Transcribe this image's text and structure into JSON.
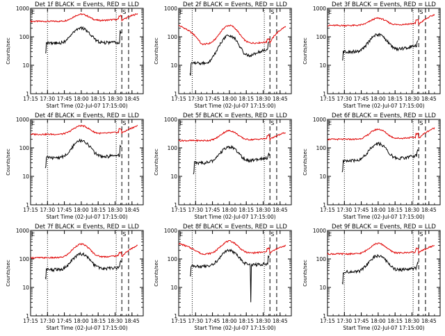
{
  "chart_data": [
    {
      "type": "line",
      "title": "Det 1f BLACK = Events, RED = LLD",
      "ylabel": "Counts/sec",
      "xlabel": "Start Time (02-Jul-07 17:15:00)",
      "ylim": [
        1,
        1000
      ],
      "yscale": "log",
      "x_ticks": [
        "17:15",
        "17:30",
        "17:45",
        "18:00",
        "18:15",
        "18:30",
        "18:45"
      ],
      "y_ticks": [
        "1",
        "10",
        "100",
        "1000"
      ],
      "markers": [
        "E",
        "S"
      ],
      "lld": {
        "base": 350,
        "peak": 620,
        "end": 650
      },
      "events": {
        "start": 55,
        "base": 60,
        "peak": 200,
        "end": 65,
        "spike": 150
      },
      "dotted": [
        "17:30",
        "18:31"
      ],
      "dashed": [
        "18:36",
        "18:42"
      ]
    },
    {
      "type": "line",
      "title": "Det 2f BLACK = Events, RED = LLD",
      "ylabel": "Counts/sec",
      "xlabel": "Start Time (02-Jul-07 17:15:00)",
      "ylim": [
        1,
        1000
      ],
      "yscale": "log",
      "x_ticks": [
        "17:15",
        "17:30",
        "17:45",
        "18:00",
        "18:15",
        "18:30",
        "18:45"
      ],
      "y_ticks": [
        "1",
        "10",
        "100",
        "1000"
      ],
      "markers": [
        "E",
        "S"
      ],
      "lld": {
        "base": 55,
        "peak": 250,
        "end": 230,
        "start": 250
      },
      "events": {
        "start": 10,
        "base": 12,
        "peak": 110,
        "end": 40,
        "spike": 60
      },
      "dotted": [
        "17:27",
        "18:31"
      ],
      "dashed": [
        "18:36",
        "18:42"
      ]
    },
    {
      "type": "line",
      "title": "Det 3f BLACK = Events, RED = LLD",
      "ylabel": "Counts/sec",
      "xlabel": "Start Time (02-Jul-07 17:15:00)",
      "ylim": [
        1,
        1000
      ],
      "yscale": "log",
      "x_ticks": [
        "17:15",
        "17:30",
        "17:45",
        "18:00",
        "18:15",
        "18:30",
        "18:45"
      ],
      "y_ticks": [
        "1",
        "10",
        "100",
        "1000"
      ],
      "markers": [
        "E",
        "S"
      ],
      "lld": {
        "base": 250,
        "peak": 450,
        "end": 600
      },
      "events": {
        "start": 28,
        "base": 30,
        "peak": 120,
        "end": 50,
        "spike": 70
      },
      "dotted": [
        "17:30",
        "18:31"
      ],
      "dashed": [
        "18:36",
        "18:42"
      ]
    },
    {
      "type": "line",
      "title": "Det 4f BLACK = Events, RED = LLD",
      "ylabel": "Counts/sec",
      "xlabel": "Start Time (02-Jul-07 17:15:00)",
      "ylim": [
        1,
        1000
      ],
      "yscale": "log",
      "x_ticks": [
        "17:15",
        "17:30",
        "17:45",
        "18:00",
        "18:15",
        "18:30",
        "18:45"
      ],
      "y_ticks": [
        "1",
        "10",
        "100",
        "1000"
      ],
      "markers": [
        "E",
        "S"
      ],
      "lld": {
        "base": 300,
        "peak": 600,
        "end": 600
      },
      "events": {
        "start": 40,
        "base": 45,
        "peak": 180,
        "end": 55,
        "spike": 120
      },
      "dotted": [
        "17:30",
        "18:31"
      ],
      "dashed": [
        "18:36",
        "18:42"
      ]
    },
    {
      "type": "line",
      "title": "Det 5f BLACK = Events, RED = LLD",
      "ylabel": "Counts/sec",
      "xlabel": "Start Time (02-Jul-07 17:15:00)",
      "ylim": [
        1,
        1000
      ],
      "yscale": "log",
      "x_ticks": [
        "17:15",
        "17:30",
        "17:45",
        "18:00",
        "18:15",
        "18:30",
        "18:45"
      ],
      "y_ticks": [
        "1",
        "10",
        "100",
        "1000"
      ],
      "markers": [
        "E",
        "S"
      ],
      "lld": {
        "base": 180,
        "peak": 400,
        "end": 350
      },
      "events": {
        "start": 25,
        "base": 30,
        "peak": 110,
        "end": 45,
        "spike": 60
      },
      "dotted": [
        "17:30",
        "18:31"
      ],
      "dashed": [
        "18:36",
        "18:42"
      ]
    },
    {
      "type": "line",
      "title": "Det 6f BLACK = Events, RED = LLD",
      "ylabel": "Counts/sec",
      "xlabel": "Start Time (02-Jul-07 17:15:00)",
      "ylim": [
        1,
        1000
      ],
      "yscale": "log",
      "x_ticks": [
        "17:15",
        "17:30",
        "17:45",
        "18:00",
        "18:15",
        "18:30",
        "18:45"
      ],
      "y_ticks": [
        "1",
        "10",
        "100",
        "1000"
      ],
      "markers": [
        "E",
        "S"
      ],
      "lld": {
        "base": 200,
        "peak": 450,
        "end": 500
      },
      "events": {
        "start": 30,
        "base": 35,
        "peak": 140,
        "end": 55,
        "spike": 80
      },
      "dotted": [
        "17:30",
        "18:31"
      ],
      "dashed": [
        "18:36",
        "18:42"
      ]
    },
    {
      "type": "line",
      "title": "Det 7f BLACK = Events, RED = LLD",
      "ylabel": "Counts/sec",
      "xlabel": "Start Time (02-Jul-07 17:15:00)",
      "ylim": [
        1,
        1000
      ],
      "yscale": "log",
      "x_ticks": [
        "17:15",
        "17:30",
        "17:45",
        "18:00",
        "18:15",
        "18:30",
        "18:45"
      ],
      "y_ticks": [
        "1",
        "10",
        "100",
        "1000"
      ],
      "markers": [
        "E",
        "S"
      ],
      "lld": {
        "base": 110,
        "peak": 330,
        "end": 300
      },
      "events": {
        "start": 40,
        "base": 42,
        "peak": 150,
        "end": 50,
        "spike": 80
      },
      "dotted": [
        "17:30",
        "18:31"
      ],
      "dashed": [
        "18:36",
        "18:42"
      ]
    },
    {
      "type": "line",
      "title": "Det 8f BLACK = Events, RED = LLD",
      "ylabel": "Counts/sec",
      "xlabel": "Start Time (02-Jul-07 17:15:00)",
      "ylim": [
        1,
        1000
      ],
      "yscale": "log",
      "x_ticks": [
        "17:15",
        "17:30",
        "17:45",
        "18:00",
        "18:15",
        "18:30",
        "18:45"
      ],
      "y_ticks": [
        "1",
        "10",
        "100",
        "1000"
      ],
      "markers": [
        "E",
        "S"
      ],
      "lld": {
        "base": 150,
        "peak": 420,
        "end": 300,
        "start": 350
      },
      "events": {
        "start": 50,
        "base": 55,
        "peak": 200,
        "end": 70,
        "spike": 120,
        "dip": 3
      },
      "dotted": [
        "17:27",
        "18:31"
      ],
      "dashed": [
        "18:36",
        "18:42"
      ]
    },
    {
      "type": "line",
      "title": "Det 9f BLACK = Events, RED = LLD",
      "ylabel": "Counts/sec",
      "xlabel": "Start Time (02-Jul-07 17:15:00)",
      "ylim": [
        1,
        1000
      ],
      "yscale": "log",
      "x_ticks": [
        "17:15",
        "17:30",
        "17:45",
        "18:00",
        "18:15",
        "18:30",
        "18:45"
      ],
      "y_ticks": [
        "1",
        "10",
        "100",
        "1000"
      ],
      "markers": [
        "E",
        "S"
      ],
      "lld": {
        "base": 150,
        "peak": 350,
        "end": 300
      },
      "events": {
        "start": 30,
        "base": 35,
        "peak": 130,
        "end": 50,
        "spike": 70
      },
      "dotted": [
        "17:30",
        "18:31"
      ],
      "dashed": [
        "18:36",
        "18:42"
      ]
    }
  ],
  "colors": {
    "events": "#000000",
    "lld": "#e00000",
    "axis": "#000000",
    "background": "#ffffff"
  }
}
